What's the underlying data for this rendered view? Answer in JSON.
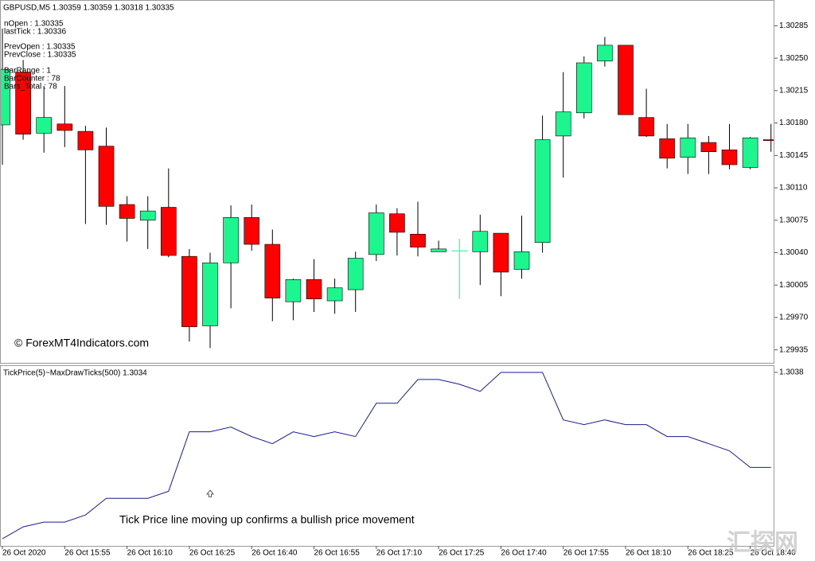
{
  "chart_data": [
    {
      "type": "candlestick",
      "title": "GBPUSD,M5  1.30359 1.30359 1.30318 1.30335",
      "info": [
        "nOpen : 1.30335",
        "lastTick : 1.30336",
        "PrevOpen : 1.30335",
        "PrevClose : 1.30335",
        "BarRange : 1",
        "BarCounter : 78",
        "Bars_Total : 78"
      ],
      "watermark": "© ForexMT4Indicators.com",
      "categories": [
        "26 Oct 2020",
        null,
        null,
        "26 Oct 15:55",
        null,
        null,
        "26 Oct 16:10",
        null,
        null,
        "26 Oct 16:25",
        null,
        null,
        "26 Oct 16:40",
        null,
        null,
        "26 Oct 16:55",
        null,
        null,
        "26 Oct 17:10",
        null,
        null,
        "26 Oct 17:25",
        null,
        null,
        "26 Oct 17:40",
        null,
        null,
        "26 Oct 17:55",
        null,
        null,
        "26 Oct 18:10",
        null,
        null,
        "26 Oct 18:25",
        null,
        null,
        "26 Oct 18:40",
        null
      ],
      "open": [
        1.30178,
        1.30235,
        1.30169,
        1.30179,
        1.30171,
        1.30155,
        1.30092,
        1.30075,
        1.30089,
        1.30036,
        1.29961,
        1.30029,
        1.30078,
        1.30049,
        1.29987,
        1.30011,
        1.29988,
        1.3,
        1.30038,
        1.30082,
        1.3006,
        1.30041,
        1.30042,
        1.30041,
        1.30061,
        1.30022,
        1.30051,
        1.30166,
        1.30191,
        1.30247,
        1.30264,
        1.30186,
        1.30163,
        1.30143,
        1.30159,
        1.30151,
        1.30132,
        1.30162
      ],
      "high": [
        1.30282,
        1.30248,
        1.3022,
        1.3022,
        1.30177,
        1.30175,
        1.30101,
        1.30101,
        1.30131,
        1.30044,
        1.3004,
        1.30091,
        1.30092,
        1.30065,
        1.30012,
        1.30033,
        1.30012,
        1.30041,
        1.30092,
        1.30088,
        1.30095,
        1.30053,
        1.30055,
        1.30081,
        1.30061,
        1.3008,
        1.30188,
        1.30235,
        1.30252,
        1.30273,
        1.30264,
        1.30217,
        1.30179,
        1.30179,
        1.30166,
        1.30179,
        1.30165,
        1.30179
      ],
      "low": [
        1.30135,
        1.30162,
        1.30148,
        1.30154,
        1.30071,
        1.3007,
        1.30052,
        1.30044,
        1.30035,
        1.29944,
        1.29937,
        1.2998,
        1.30042,
        1.29966,
        1.29967,
        1.29976,
        1.29974,
        1.29976,
        1.30031,
        1.30037,
        1.30036,
        1.30041,
        1.2999,
        1.30005,
        1.29993,
        1.30012,
        1.3004,
        1.30121,
        1.30185,
        1.30241,
        1.30189,
        1.30165,
        1.30131,
        1.30125,
        1.30125,
        1.3013,
        1.3013,
        1.30149
      ],
      "close": [
        1.30238,
        1.30168,
        1.30186,
        1.30172,
        1.30151,
        1.3009,
        1.30077,
        1.30085,
        1.30037,
        1.2996,
        1.30029,
        1.30078,
        1.30049,
        1.29991,
        1.30011,
        1.2999,
        1.30002,
        1.30034,
        1.30083,
        1.30062,
        1.30046,
        1.30044,
        1.30042,
        1.30063,
        1.30019,
        1.30041,
        1.30162,
        1.30192,
        1.30245,
        1.30264,
        1.30189,
        1.30166,
        1.30142,
        1.30164,
        1.30149,
        1.30135,
        1.30164,
        1.30161
      ],
      "up_color": "#1df58e",
      "down_color": "#ff0000",
      "ylim": [
        1.29921,
        1.30312
      ],
      "yticks": [
        1.30285,
        {
          "value": 1.3025,
          "label": "1.30250"
        },
        1.30215,
        {
          "value": 1.3018,
          "label": "1.30180"
        },
        1.30145,
        {
          "value": 1.3011,
          "label": "1.30110"
        },
        1.30075,
        {
          "value": 1.3004,
          "label": "1.30040"
        },
        1.30005,
        {
          "value": 1.2997,
          "label": "1.29970"
        },
        1.29935
      ]
    },
    {
      "type": "line",
      "title": "TickPrice(5)~MaxDrawTicks(500) 1.3034",
      "annotation": "Tick Price line moving up confirms a bullish price movement",
      "color": "#1a1a9a",
      "values": [
        1.3031,
        1.30315,
        1.30317,
        1.30317,
        1.3032,
        1.30327,
        1.30327,
        1.30327,
        1.3033,
        1.30355,
        1.30355,
        1.30357,
        1.30353,
        1.3035,
        1.30355,
        1.30353,
        1.30355,
        1.30353,
        1.30367,
        1.30367,
        1.30377,
        1.30377,
        1.30375,
        1.30372,
        1.3038,
        1.3038,
        1.3038,
        1.3036,
        1.30358,
        1.3036,
        1.30358,
        1.30358,
        1.30353,
        1.30353,
        1.3035,
        1.30347,
        1.3034,
        1.3034
      ],
      "ylim": [
        1.30307,
        1.30383
      ],
      "yticks": [
        1.3038
      ]
    }
  ],
  "corner_watermark": "汇探网"
}
